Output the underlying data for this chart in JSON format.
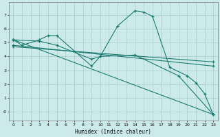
{
  "bg_color": "#cceaea",
  "grid_color": "#aacccc",
  "line_color": "#1a7a6e",
  "xlabel": "Humidex (Indice chaleur)",
  "xlim": [
    -0.5,
    23.5
  ],
  "ylim": [
    -0.65,
    7.9
  ],
  "lines": [
    {
      "x": [
        0,
        1,
        3,
        4,
        5,
        9,
        10,
        12,
        14,
        15,
        16,
        18,
        20,
        21,
        22,
        23
      ],
      "y": [
        5.2,
        4.8,
        5.2,
        5.5,
        5.5,
        3.3,
        4.0,
        6.2,
        7.3,
        7.2,
        6.9,
        3.2,
        2.6,
        2.1,
        1.3,
        -0.2
      ]
    },
    {
      "x": [
        0,
        3,
        5,
        9,
        10,
        14,
        19,
        23
      ],
      "y": [
        5.2,
        5.1,
        4.8,
        3.8,
        4.0,
        4.1,
        2.6,
        -0.2
      ]
    },
    {
      "x": [
        0,
        23
      ],
      "y": [
        5.2,
        -0.2
      ]
    },
    {
      "x": [
        0,
        23
      ],
      "y": [
        4.8,
        3.3
      ]
    },
    {
      "x": [
        0,
        23
      ],
      "y": [
        4.7,
        3.6
      ]
    }
  ]
}
